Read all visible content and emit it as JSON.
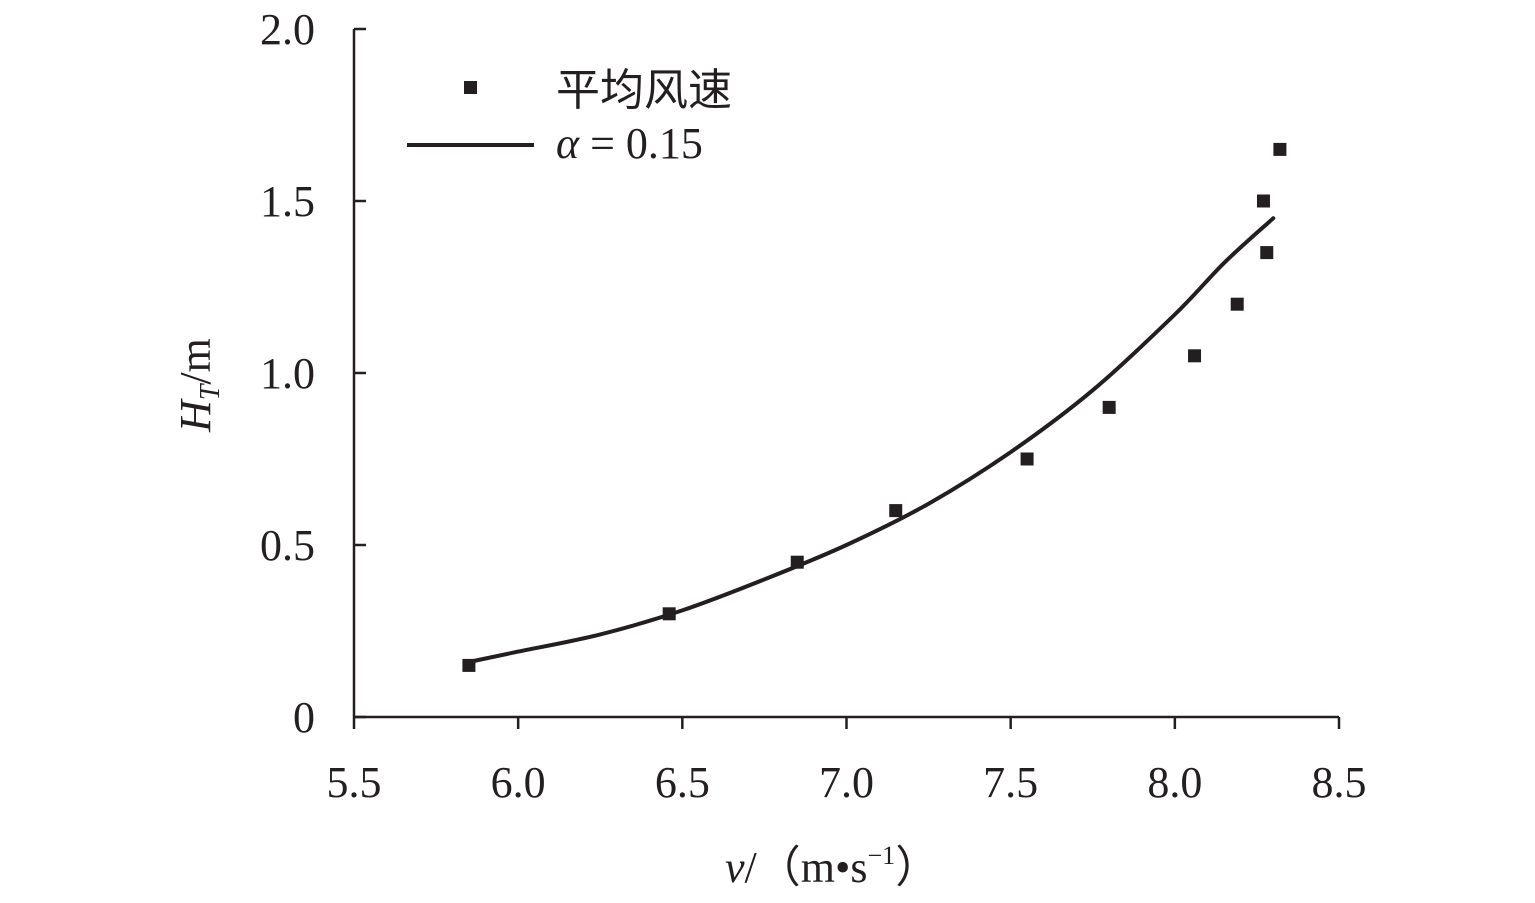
{
  "chart_data": {
    "type": "scatter",
    "title": "",
    "xlabel_var": "v",
    "xlabel_unit": "/（m•s",
    "xlabel_exp": "−1",
    "xlabel_close": "）",
    "ylabel_var": "H",
    "ylabel_sub": "T",
    "ylabel_unit": "/m",
    "xlim": [
      5.5,
      8.5
    ],
    "ylim": [
      0,
      2.0
    ],
    "xticks": [
      5.5,
      6.0,
      6.5,
      7.0,
      7.5,
      8.0,
      8.5
    ],
    "xtick_labels": [
      "5.5",
      "6.0",
      "6.5",
      "7.0",
      "7.5",
      "8.0",
      "8.5"
    ],
    "yticks": [
      0,
      0.5,
      1.0,
      1.5,
      2.0
    ],
    "ytick_labels": [
      "0",
      "0.5",
      "1.0",
      "1.5",
      "2.0"
    ],
    "grid": false,
    "legend_position": "top-left",
    "series": [
      {
        "name": "平均风速",
        "kind": "scatter",
        "marker": "square",
        "color": "#231f20",
        "x": [
          5.85,
          6.46,
          6.85,
          7.15,
          7.55,
          7.8,
          8.06,
          8.19,
          8.27,
          8.28,
          8.32
        ],
        "y": [
          0.15,
          0.3,
          0.45,
          0.6,
          0.75,
          0.9,
          1.05,
          1.2,
          1.5,
          1.35,
          1.65
        ]
      },
      {
        "name_symbol": "α",
        "name_rest": " = 0.15",
        "kind": "line",
        "color": "#231f20",
        "x": [
          5.85,
          6.0,
          6.25,
          6.5,
          6.75,
          7.0,
          7.25,
          7.5,
          7.75,
          8.0,
          8.15,
          8.3
        ],
        "y": [
          0.16,
          0.19,
          0.24,
          0.31,
          0.4,
          0.5,
          0.62,
          0.77,
          0.95,
          1.17,
          1.32,
          1.45
        ]
      }
    ]
  }
}
